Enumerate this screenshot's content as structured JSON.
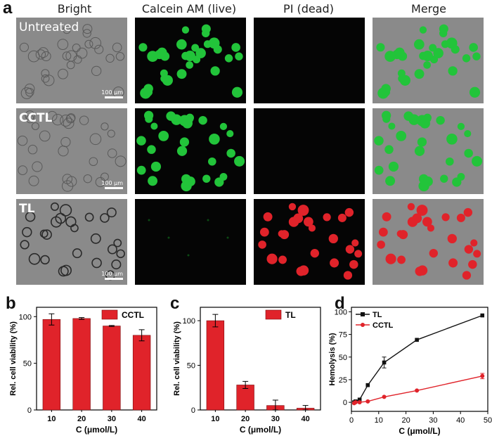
{
  "panel_a": {
    "letter": "a",
    "columns": [
      "Bright",
      "Calcein AM (live)",
      "PI (dead)",
      "Merge"
    ],
    "rows": [
      "Untreated",
      "CCTL",
      "TL"
    ],
    "scale_bar_label": "100 μm",
    "colors": {
      "live": "#22c43a",
      "dead": "#e0232a",
      "bright_bg": "#8a8a8a"
    }
  },
  "chart_data": [
    {
      "panel": "b",
      "type": "bar",
      "categories": [
        "10",
        "20",
        "30",
        "40"
      ],
      "series": [
        {
          "name": "CCTL",
          "values": [
            97,
            98,
            90,
            80
          ],
          "errors": [
            6,
            1,
            0.5,
            6
          ]
        }
      ],
      "xlabel": "C (μmol/L)",
      "ylabel": "Rel. cell viability (%)",
      "ylim": [
        0,
        110
      ],
      "yticks": [
        0,
        50,
        100
      ],
      "legend": "top-right",
      "color": "#e0232a"
    },
    {
      "panel": "c",
      "type": "bar",
      "categories": [
        "10",
        "20",
        "30",
        "40"
      ],
      "series": [
        {
          "name": "TL",
          "values": [
            100,
            28,
            5,
            2
          ],
          "errors": [
            7,
            4,
            6,
            3
          ]
        }
      ],
      "xlabel": "C (μmol/L)",
      "ylabel": "Rel. cell viability (%)",
      "ylim": [
        0,
        115
      ],
      "yticks": [
        0,
        50,
        100
      ],
      "legend": "top-right",
      "color": "#e0232a"
    },
    {
      "panel": "d",
      "type": "line",
      "xlabel": "C (μmol/L)",
      "ylabel": "Hemolysis (%)",
      "xlim": [
        0,
        50
      ],
      "ylim": [
        -10,
        105
      ],
      "xticks": [
        0,
        10,
        20,
        30,
        40,
        50
      ],
      "yticks": [
        0,
        25,
        50,
        75,
        100
      ],
      "legend": "top-left",
      "series": [
        {
          "name": "TL",
          "color": "#111111",
          "marker": "square",
          "x": [
            1,
            1.5,
            3,
            6,
            12,
            24,
            48
          ],
          "y": [
            0,
            1,
            3,
            19,
            44,
            69,
            96
          ],
          "err": [
            0,
            0,
            0,
            0,
            6,
            0,
            0
          ]
        },
        {
          "name": "CCTL",
          "color": "#e0232a",
          "marker": "circle",
          "x": [
            1,
            1.5,
            3,
            6,
            12,
            24,
            48
          ],
          "y": [
            -1,
            0,
            0,
            1,
            6,
            13,
            29
          ],
          "err": [
            0,
            0,
            0,
            0,
            0,
            0,
            3
          ]
        }
      ]
    }
  ]
}
